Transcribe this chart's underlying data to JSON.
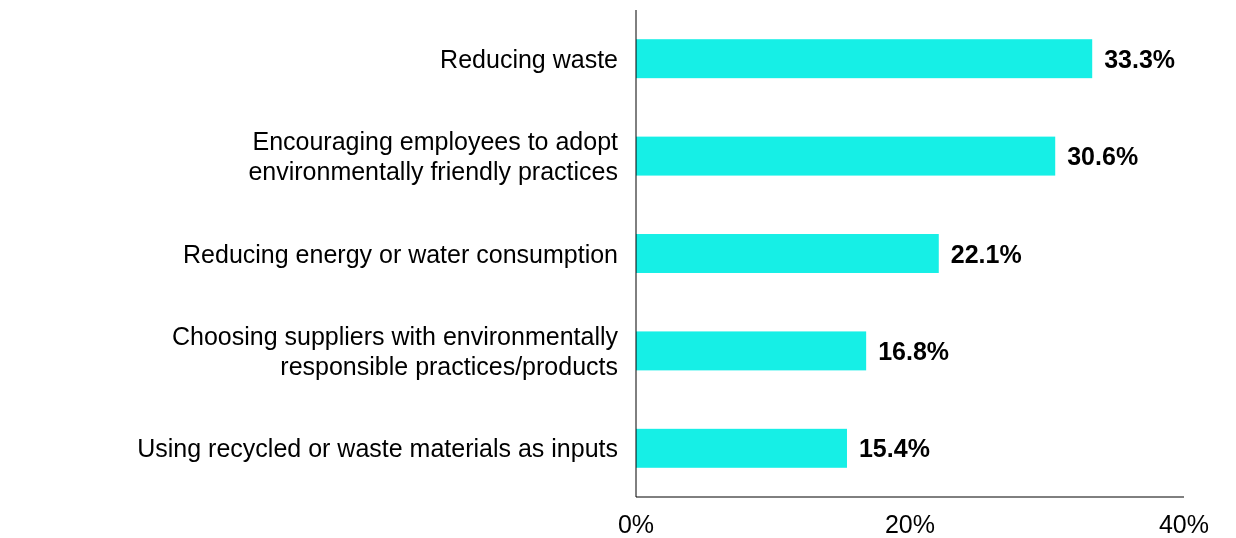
{
  "chart_data": {
    "type": "bar",
    "orientation": "horizontal",
    "categories": [
      "Reducing waste",
      "Encouraging employees to adopt\nenvironmentally friendly practices",
      "Reducing energy or water consumption",
      "Choosing suppliers with environmentally\nresponsible practices/products",
      "Using recycled or waste materials as inputs"
    ],
    "values": [
      33.3,
      30.6,
      22.1,
      16.8,
      15.4
    ],
    "color": "#16efe6",
    "xlim": [
      0,
      40
    ],
    "xticks": [
      {
        "value": 0,
        "label": "0%"
      },
      {
        "value": 20,
        "label": "20%"
      },
      {
        "value": 40,
        "label": "40%"
      }
    ],
    "value_labels": [
      "33.3%",
      "30.6%",
      "22.1%",
      "16.8%",
      "15.4%"
    ],
    "grid": false
  }
}
